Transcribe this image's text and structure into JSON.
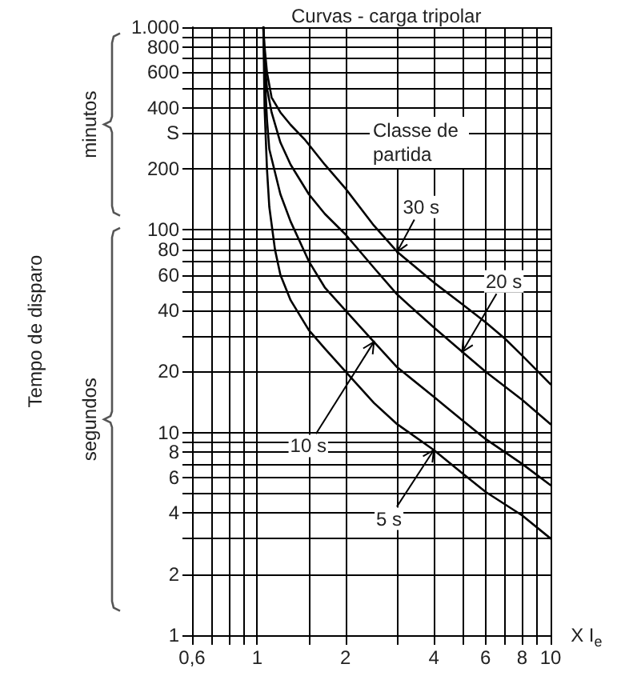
{
  "chart_data": {
    "type": "line",
    "title": "Curvas - carga tripolar",
    "legend_title": "Classe de partida",
    "ylabel": "Tempo de disparo",
    "xlabel": "X I$_{e}$",
    "annotations": [
      "minutos",
      "segundos",
      {
        "text": "30 s",
        "x": 3,
        "y": 78
      },
      {
        "text": "20 s",
        "x": 5,
        "y": 25
      },
      {
        "text": "10 s",
        "x": 2.5,
        "y": 28
      },
      {
        "text": "5 s",
        "x": 4,
        "y": 8.2
      }
    ],
    "log": "xy",
    "grid": true,
    "marker": "none",
    "line_style": "solid",
    "xlim": [
      0.6,
      10
    ],
    "ylim": [
      1,
      1000
    ],
    "xticks": [
      {
        "value": 0.6,
        "label": "0,6"
      },
      {
        "value": 0.7,
        "label": null
      },
      {
        "value": 0.8,
        "label": null
      },
      {
        "value": 0.9,
        "label": null
      },
      1,
      {
        "value": 1.5,
        "label": null
      },
      2,
      {
        "value": 3,
        "label": null
      },
      4,
      {
        "value": 5,
        "label": null
      },
      6,
      {
        "value": 7,
        "label": null
      },
      8,
      {
        "value": 9,
        "label": null
      },
      10
    ],
    "yticks": [
      1,
      2,
      {
        "value": 3,
        "label": null
      },
      4,
      {
        "value": 5,
        "label": null
      },
      6,
      {
        "value": 7,
        "label": null
      },
      8,
      {
        "value": 9,
        "label": null
      },
      10,
      20,
      {
        "value": 30,
        "label": null
      },
      40,
      {
        "value": 50,
        "label": null
      },
      60,
      {
        "value": 70,
        "label": null
      },
      80,
      {
        "value": 90,
        "label": null
      },
      100,
      200,
      {
        "value": 300,
        "label": "S"
      },
      400,
      {
        "value": 500,
        "label": null
      },
      600,
      {
        "value": 700,
        "label": null
      },
      800,
      {
        "value": 900,
        "label": null
      },
      {
        "value": 1000,
        "label": "1.000"
      }
    ],
    "series": [
      {
        "color": "#000000",
        "x": [
          1.05,
          1.06,
          1.08,
          1.12,
          1.2,
          1.3,
          1.45,
          1.7,
          2,
          2.5,
          3,
          4,
          5,
          6,
          7,
          8,
          10
        ],
        "values": [
          1000,
          800,
          600,
          450,
          380,
          330,
          280,
          210,
          160,
          105,
          78,
          55,
          43,
          35,
          29,
          24,
          17.3
        ]
      },
      {
        "color": "#000000",
        "x": [
          1.05,
          1.06,
          1.08,
          1.12,
          1.2,
          1.3,
          1.5,
          1.7,
          2,
          2.5,
          3,
          4,
          5,
          6,
          8,
          10
        ],
        "values": [
          1000,
          700,
          500,
          380,
          270,
          210,
          150,
          120,
          95,
          65,
          48,
          33,
          25,
          20,
          14.5,
          11
        ]
      },
      {
        "color": "#000000",
        "x": [
          1.05,
          1.06,
          1.08,
          1.1,
          1.2,
          1.3,
          1.5,
          1.7,
          2,
          2.5,
          3,
          4,
          5,
          6,
          8,
          10
        ],
        "values": [
          1000,
          600,
          350,
          250,
          150,
          110,
          70,
          52,
          40,
          28,
          21,
          15,
          11.5,
          9.3,
          7,
          5.5
        ]
      },
      {
        "color": "#000000",
        "x": [
          1.05,
          1.06,
          1.08,
          1.1,
          1.15,
          1.2,
          1.3,
          1.5,
          1.7,
          2,
          2.5,
          3,
          4,
          5,
          6,
          8,
          10
        ],
        "values": [
          1000,
          400,
          200,
          130,
          80,
          60,
          45,
          32,
          26,
          20,
          14,
          11,
          8.2,
          6.3,
          5.1,
          3.9,
          3
        ]
      }
    ]
  }
}
